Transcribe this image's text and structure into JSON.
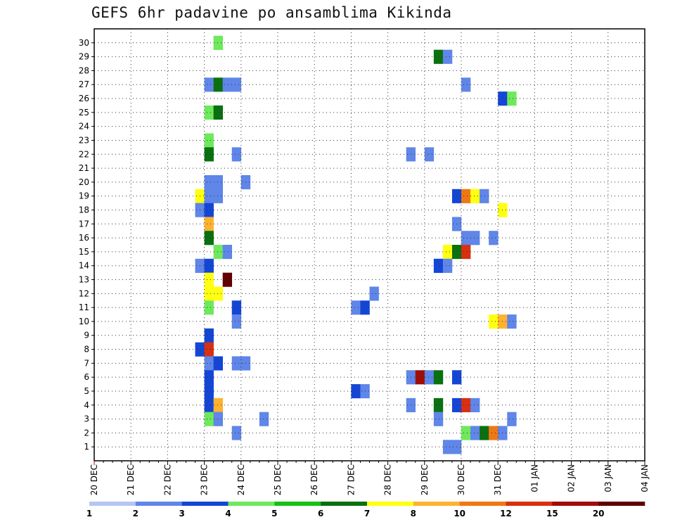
{
  "chart_data": {
    "type": "heatmap",
    "title": "GEFS 6hr padavine po ansamblima Kikinda",
    "xlabel": "",
    "ylabel": "",
    "x_tick_labels": [
      "20 DEC",
      "21 DEC",
      "22 DEC",
      "23 DEC",
      "24 DEC",
      "25 DEC",
      "26 DEC",
      "27 DEC",
      "28 DEC",
      "29 DEC",
      "30 DEC",
      "31 DEC",
      "01 JAN",
      "02 JAN",
      "03 JAN",
      "04 JAN"
    ],
    "y_tick_labels": [
      "1",
      "2",
      "3",
      "4",
      "5",
      "6",
      "7",
      "8",
      "9",
      "10",
      "11",
      "12",
      "13",
      "14",
      "15",
      "16",
      "17",
      "18",
      "19",
      "20",
      "21",
      "22",
      "23",
      "24",
      "25",
      "26",
      "27",
      "28",
      "29",
      "30"
    ],
    "steps_per_day": 4,
    "total_steps": 60,
    "grid": true,
    "legend_position": "bottom",
    "legend_labels": [
      "1",
      "2",
      "3",
      "4",
      "5",
      "6",
      "7",
      "8",
      "10",
      "12",
      "15",
      "20"
    ],
    "legend_colors": [
      "#b4c6f2",
      "#5f86e8",
      "#1446d6",
      "#6ee95c",
      "#18c014",
      "#0a7010",
      "#ffff10",
      "#ffb230",
      "#f07814",
      "#d83010",
      "#a00c08",
      "#600000"
    ],
    "cells": [
      [
        30,
        13,
        3
      ],
      [
        29,
        37,
        5
      ],
      [
        29,
        38,
        1
      ],
      [
        27,
        12,
        1
      ],
      [
        27,
        13,
        5
      ],
      [
        27,
        14,
        1
      ],
      [
        27,
        15,
        1
      ],
      [
        27,
        40,
        1
      ],
      [
        26,
        44,
        2
      ],
      [
        26,
        45,
        3
      ],
      [
        25,
        12,
        3
      ],
      [
        25,
        13,
        5
      ],
      [
        23,
        12,
        3
      ],
      [
        22,
        12,
        5
      ],
      [
        22,
        15,
        1
      ],
      [
        22,
        34,
        1
      ],
      [
        22,
        36,
        1
      ],
      [
        20,
        12,
        1
      ],
      [
        20,
        13,
        1
      ],
      [
        20,
        16,
        1
      ],
      [
        19,
        11,
        6
      ],
      [
        19,
        12,
        1
      ],
      [
        19,
        13,
        1
      ],
      [
        19,
        39,
        2
      ],
      [
        19,
        40,
        8
      ],
      [
        19,
        41,
        6
      ],
      [
        19,
        42,
        1
      ],
      [
        18,
        11,
        1
      ],
      [
        18,
        12,
        2
      ],
      [
        18,
        44,
        6
      ],
      [
        17,
        12,
        7
      ],
      [
        17,
        39,
        1
      ],
      [
        16,
        12,
        5
      ],
      [
        16,
        40,
        1
      ],
      [
        16,
        41,
        1
      ],
      [
        16,
        43,
        1
      ],
      [
        15,
        13,
        3
      ],
      [
        15,
        14,
        1
      ],
      [
        15,
        38,
        6
      ],
      [
        15,
        39,
        5
      ],
      [
        15,
        40,
        9
      ],
      [
        14,
        11,
        1
      ],
      [
        14,
        12,
        2
      ],
      [
        14,
        37,
        2
      ],
      [
        14,
        38,
        1
      ],
      [
        13,
        12,
        6
      ],
      [
        13,
        14,
        11
      ],
      [
        12,
        12,
        6
      ],
      [
        12,
        13,
        6
      ],
      [
        12,
        30,
        1
      ],
      [
        11,
        12,
        3
      ],
      [
        11,
        15,
        2
      ],
      [
        11,
        28,
        1
      ],
      [
        11,
        29,
        2
      ],
      [
        10,
        15,
        1
      ],
      [
        10,
        43,
        6
      ],
      [
        10,
        44,
        7
      ],
      [
        10,
        45,
        1
      ],
      [
        9,
        12,
        2
      ],
      [
        8,
        11,
        2
      ],
      [
        8,
        12,
        9
      ],
      [
        7,
        12,
        1
      ],
      [
        7,
        13,
        2
      ],
      [
        7,
        15,
        1
      ],
      [
        7,
        16,
        1
      ],
      [
        6,
        12,
        2
      ],
      [
        6,
        34,
        1
      ],
      [
        6,
        35,
        10
      ],
      [
        6,
        36,
        1
      ],
      [
        6,
        37,
        5
      ],
      [
        6,
        39,
        2
      ],
      [
        5,
        12,
        2
      ],
      [
        5,
        28,
        2
      ],
      [
        5,
        29,
        1
      ],
      [
        4,
        12,
        2
      ],
      [
        4,
        13,
        7
      ],
      [
        4,
        34,
        1
      ],
      [
        4,
        37,
        5
      ],
      [
        4,
        39,
        2
      ],
      [
        4,
        40,
        9
      ],
      [
        4,
        41,
        1
      ],
      [
        3,
        12,
        3
      ],
      [
        3,
        13,
        1
      ],
      [
        3,
        18,
        1
      ],
      [
        3,
        37,
        1
      ],
      [
        3,
        45,
        1
      ],
      [
        2,
        15,
        1
      ],
      [
        2,
        40,
        3
      ],
      [
        2,
        41,
        1
      ],
      [
        2,
        42,
        5
      ],
      [
        2,
        43,
        8
      ],
      [
        2,
        44,
        1
      ],
      [
        1,
        38,
        1
      ],
      [
        1,
        39,
        1
      ]
    ]
  }
}
